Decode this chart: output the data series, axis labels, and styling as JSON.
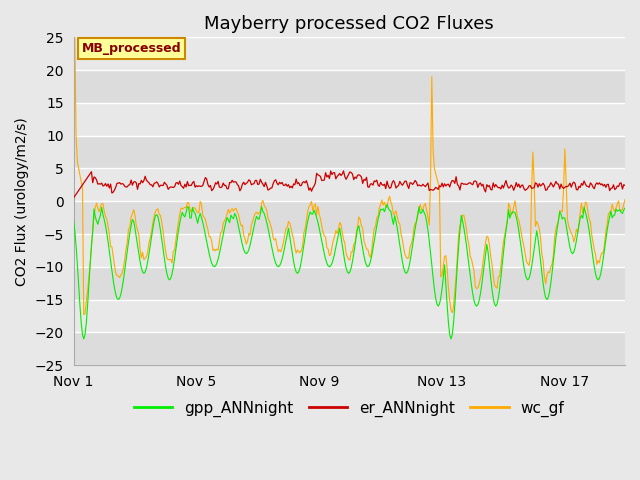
{
  "title": "Mayberry processed CO2 Fluxes",
  "ylabel": "CO2 Flux (urology/m2/s)",
  "ylim": [
    -25,
    25
  ],
  "yticks": [
    -25,
    -20,
    -15,
    -10,
    -5,
    0,
    5,
    10,
    15,
    20,
    25
  ],
  "xtick_labels": [
    "Nov 1",
    "Nov 5",
    "Nov 9",
    "Nov 13",
    "Nov 17"
  ],
  "xtick_positions": [
    0,
    96,
    192,
    288,
    384
  ],
  "n_points": 432,
  "bg_color": "#e8e8e8",
  "band_colors": [
    "#dcdcdc",
    "#e8e8e8"
  ],
  "grid_color": "#ffffff",
  "line_colors": {
    "gpp": "#00ee00",
    "er": "#cc0000",
    "wc": "#ffaa00"
  },
  "legend_label_box": "MB_processed",
  "legend_box_facecolor": "#ffff99",
  "legend_box_edgecolor": "#cc8800",
  "legend_box_textcolor": "#880000",
  "title_fontsize": 13,
  "tick_fontsize": 10,
  "ylabel_fontsize": 10,
  "legend_fontsize": 11
}
